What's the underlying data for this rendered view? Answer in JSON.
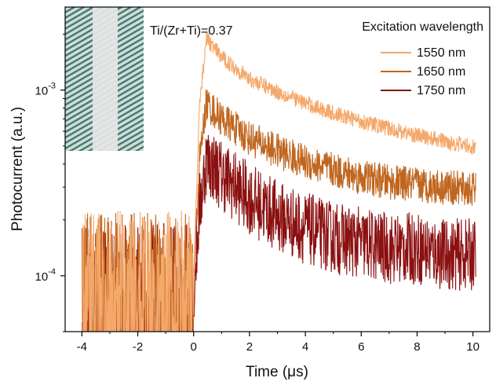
{
  "chart_data": {
    "type": "line",
    "annotation": "Ti/(Zr+Ti)=0.37",
    "xlabel": "Time (μs)",
    "ylabel": "Photocurrent (a.u.)",
    "xlim": [
      -4.6,
      10.6
    ],
    "ylim": [
      5e-05,
      0.0028
    ],
    "yscale": "log",
    "x_ticks": [
      -4,
      -2,
      0,
      2,
      4,
      6,
      8,
      10
    ],
    "x_tick_labels": [
      "-4",
      "-2",
      "0",
      "2",
      "4",
      "6",
      "8",
      "10"
    ],
    "y_ticks": [
      0.0001,
      0.001
    ],
    "y_tick_labels": [
      {
        "base": "10",
        "exp": "-4"
      },
      {
        "base": "10",
        "exp": "-3"
      }
    ],
    "legend": {
      "title": "Excitation wavelength",
      "placement": "top-right"
    },
    "inset_image": "micrograph of striped electrode pattern",
    "series": [
      {
        "name": "1550 nm",
        "color": "#f4a86a",
        "x": [
          -4.0,
          0.0,
          0.2,
          0.45,
          1,
          2,
          3,
          4,
          5,
          6,
          7,
          8,
          9,
          10.1
        ],
        "y": [
          9e-05,
          9e-05,
          0.0008,
          0.0019,
          0.0015,
          0.00115,
          0.00098,
          0.00085,
          0.00075,
          0.00068,
          0.00062,
          0.00057,
          0.00053,
          0.00049
        ]
      },
      {
        "name": "1650 nm",
        "color": "#c0661f",
        "x": [
          -4.0,
          0.0,
          0.2,
          0.45,
          1,
          2,
          3,
          4,
          5,
          6,
          7,
          8,
          9,
          10.1
        ],
        "y": [
          9e-05,
          9e-05,
          0.0004,
          0.00085,
          0.0007,
          0.00055,
          0.00047,
          0.00041,
          0.00037,
          0.00034,
          0.00032,
          0.00031,
          0.0003,
          0.00029
        ]
      },
      {
        "name": "1750 nm",
        "color": "#8b1010",
        "x": [
          -4.0,
          0.0,
          0.2,
          0.45,
          1,
          2,
          3,
          4,
          5,
          6,
          7,
          8,
          9,
          10.1
        ],
        "y": [
          8e-05,
          8e-05,
          0.00022,
          0.00042,
          0.00035,
          0.00026,
          0.00021,
          0.00018,
          0.00016,
          0.00015,
          0.00014,
          0.00014,
          0.00013,
          0.00013
        ]
      }
    ]
  }
}
